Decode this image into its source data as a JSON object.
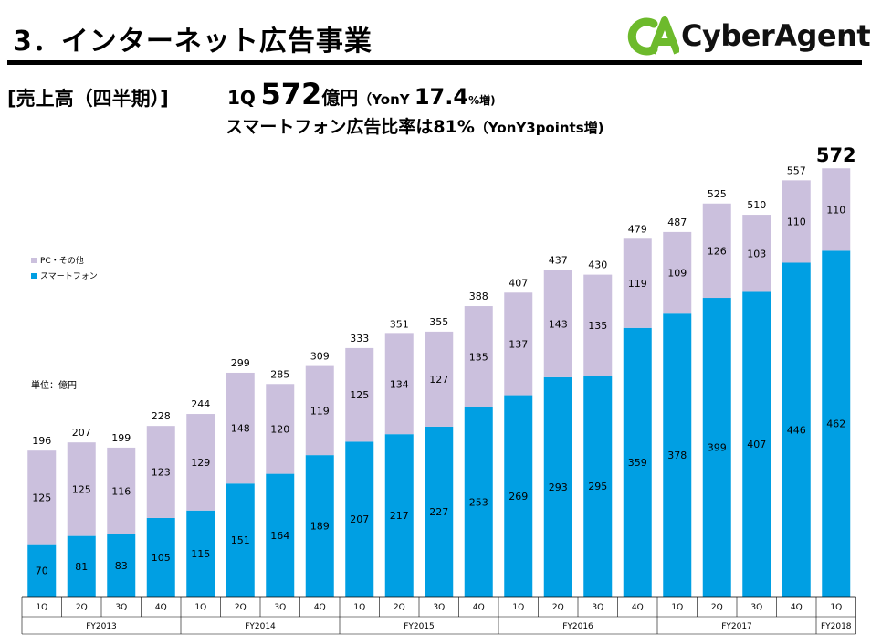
{
  "header": {
    "title": "3．インターネット広告事業",
    "section_label": "[売上高（四半期）]",
    "quarter": "1Q",
    "revenue": "572",
    "revenue_unit": "億円",
    "yoy_prefix": "（YonY ",
    "yoy_value": "17.4",
    "yoy_suffix": "%増)",
    "smartphone_text": "スマートフォン広告比率は81%",
    "smartphone_yoy": "（YonY3points増)"
  },
  "logo": {
    "mark_text": "CA",
    "name": "CyberAgent",
    "registered": "®"
  },
  "legend": {
    "other": "PC・その他",
    "smartphone": "スマートフォン"
  },
  "unit_label": "単位：億円",
  "colors": {
    "smartphone": "#009FE3",
    "other": "#CBC0DD",
    "logo_green": "#6DBA2C"
  },
  "chart_data": {
    "type": "bar",
    "stacked": true,
    "categories": [
      "1Q",
      "2Q",
      "3Q",
      "4Q",
      "1Q",
      "2Q",
      "3Q",
      "4Q",
      "1Q",
      "2Q",
      "3Q",
      "4Q",
      "1Q",
      "2Q",
      "3Q",
      "4Q",
      "1Q",
      "2Q",
      "3Q",
      "4Q",
      "1Q"
    ],
    "fiscal_years": [
      {
        "label": "FY2013",
        "count": 4
      },
      {
        "label": "FY2014",
        "count": 4
      },
      {
        "label": "FY2015",
        "count": 4
      },
      {
        "label": "FY2016",
        "count": 4
      },
      {
        "label": "FY2017",
        "count": 4
      },
      {
        "label": "FY2018",
        "count": 1
      }
    ],
    "series": [
      {
        "name": "スマートフォン",
        "values": [
          70,
          81,
          83,
          105,
          115,
          151,
          164,
          189,
          207,
          217,
          227,
          253,
          269,
          293,
          295,
          359,
          378,
          399,
          407,
          446,
          462
        ]
      },
      {
        "name": "PC・その他",
        "values": [
          125,
          125,
          116,
          123,
          129,
          148,
          120,
          119,
          125,
          134,
          127,
          135,
          137,
          143,
          135,
          119,
          109,
          126,
          103,
          110,
          110
        ]
      }
    ],
    "totals": [
      196,
      207,
      199,
      228,
      244,
      299,
      285,
      309,
      333,
      351,
      355,
      388,
      407,
      437,
      430,
      479,
      487,
      525,
      510,
      557,
      572
    ],
    "ylim": [
      0,
      600
    ],
    "title": "",
    "xlabel": "",
    "ylabel": "単位：億円",
    "legend_position": "left"
  }
}
